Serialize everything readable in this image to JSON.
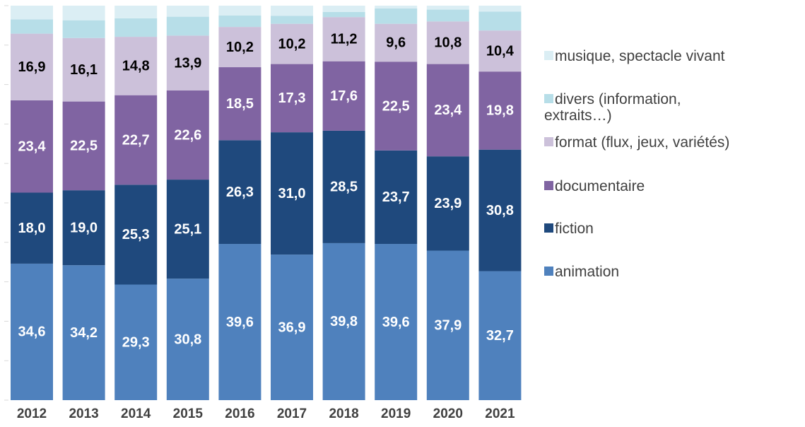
{
  "chart_data": {
    "type": "stacked_bar",
    "categories": [
      "2012",
      "2013",
      "2014",
      "2015",
      "2016",
      "2017",
      "2018",
      "2019",
      "2020",
      "2021"
    ],
    "ylim": [
      0,
      100
    ],
    "yticks": [
      0,
      10,
      20,
      30,
      40,
      50,
      60,
      70,
      80,
      90,
      100
    ],
    "series": [
      {
        "name": "animation",
        "color": "#4f81bd",
        "label_color": "#ffffff",
        "values": [
          34.6,
          34.2,
          29.3,
          30.8,
          39.6,
          36.9,
          39.8,
          39.6,
          37.9,
          32.7
        ],
        "value_labels": [
          "34,6",
          "34,2",
          "29,3",
          "30,8",
          "39,6",
          "36,9",
          "39,8",
          "39,6",
          "37,9",
          "32,7"
        ]
      },
      {
        "name": "fiction",
        "color": "#1f497d",
        "label_color": "#ffffff",
        "values": [
          18.0,
          19.0,
          25.3,
          25.1,
          26.3,
          31.0,
          28.5,
          23.7,
          23.9,
          30.8
        ],
        "value_labels": [
          "18,0",
          "19,0",
          "25,3",
          "25,1",
          "26,3",
          "31,0",
          "28,5",
          "23,7",
          "23,9",
          "30,8"
        ]
      },
      {
        "name": "documentaire",
        "color": "#8064a2",
        "label_color": "#ffffff",
        "values": [
          23.4,
          22.5,
          22.7,
          22.6,
          18.5,
          17.3,
          17.6,
          22.5,
          23.4,
          19.8
        ],
        "value_labels": [
          "23,4",
          "22,5",
          "22,7",
          "22,6",
          "18,5",
          "17,3",
          "17,6",
          "22,5",
          "23,4",
          "19,8"
        ]
      },
      {
        "name": "format (flux, jeux, variétés)",
        "color": "#ccc1da",
        "label_color": "#000000",
        "values": [
          16.9,
          16.1,
          14.8,
          13.9,
          10.2,
          10.2,
          11.2,
          9.6,
          10.8,
          10.4
        ],
        "value_labels": [
          "16,9",
          "16,1",
          "14,8",
          "13,9",
          "10,2",
          "10,2",
          "11,2",
          "9,6",
          "10,8",
          "10,4"
        ]
      },
      {
        "name": "divers (information,\nextraits…)",
        "color": "#b7dee8",
        "values": [
          3.6,
          4.5,
          4.7,
          4.8,
          2.9,
          2.0,
          1.3,
          3.9,
          3.0,
          4.8
        ]
      },
      {
        "name": "musique, spectacle vivant",
        "color": "#dbeef4",
        "values": [
          3.5,
          3.7,
          3.2,
          2.8,
          2.5,
          2.6,
          1.6,
          0.7,
          1.0,
          1.5
        ]
      }
    ]
  }
}
